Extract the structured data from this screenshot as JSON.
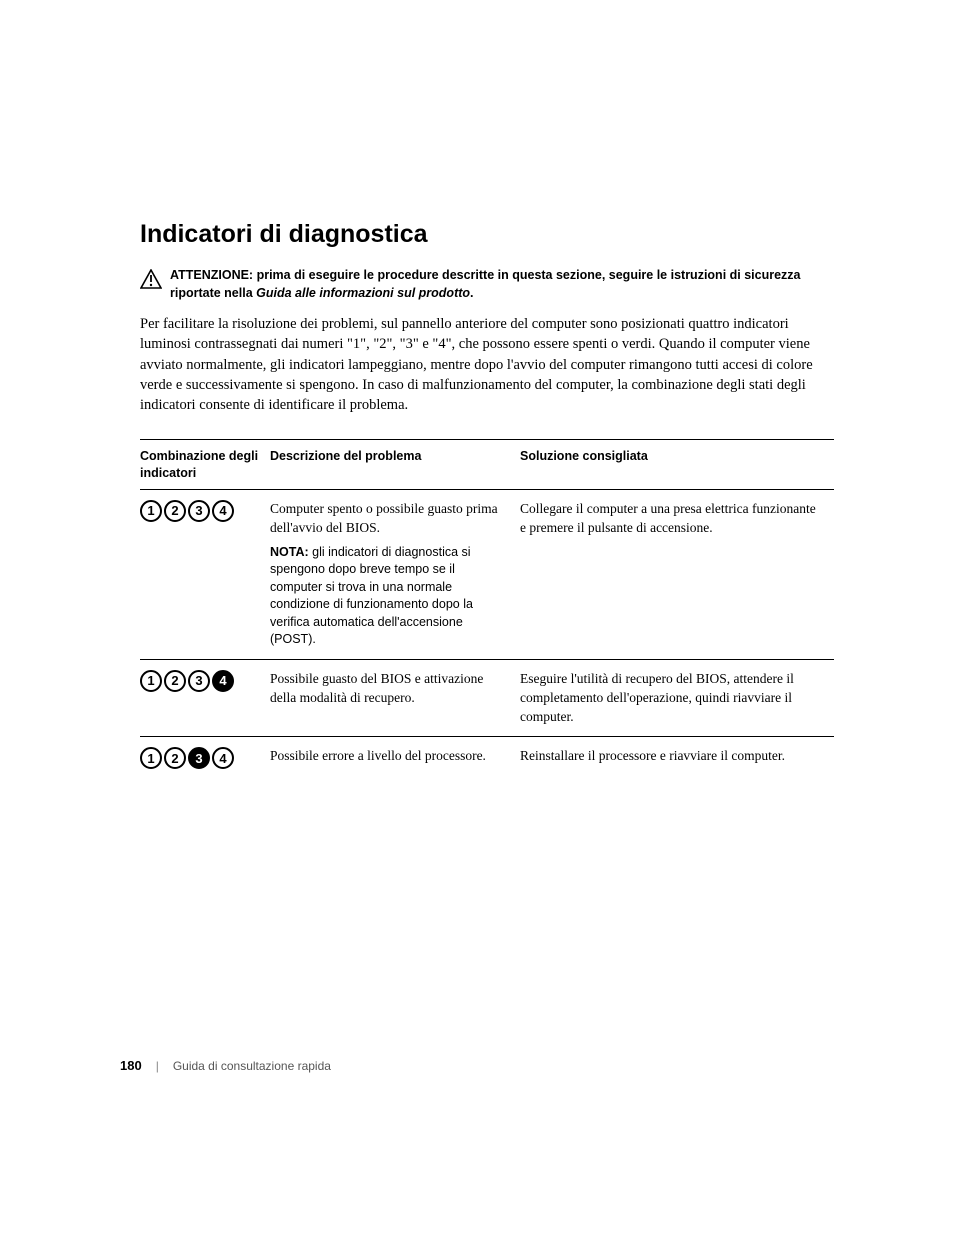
{
  "section_title": "Indicatori di diagnostica",
  "attention": {
    "label": "ATTENZIONE:",
    "text_before": "prima di eseguire le procedure descritte in questa sezione, seguire le istruzioni di sicurezza riportate nella ",
    "ital": "Guida alle informazioni sul prodotto",
    "text_after": "."
  },
  "intro": "Per facilitare la risoluzione dei problemi, sul pannello anteriore del computer sono posizionati quattro indicatori luminosi contrassegnati dai numeri \"1\", \"2\", \"3\" e \"4\", che possono essere spenti o verdi. Quando il computer viene avviato normalmente, gli indicatori lampeggiano, mentre dopo l'avvio del computer rimangono tutti accesi di colore verde e successivamente si spengono. In caso di malfunzionamento del computer, la combinazione degli stati degli indicatori consente di identificare il problema.",
  "table": {
    "headers": {
      "col1": "Combinazione degli indicatori",
      "col2": "Descrizione del problema",
      "col3": "Soluzione consigliata"
    },
    "rows": [
      {
        "leds": [
          "off",
          "off",
          "off",
          "off"
        ],
        "desc": "Computer spento o possibile guasto prima dell'avvio del BIOS.",
        "nota_label": "NOTA:",
        "nota": "gli indicatori di diagnostica si spengono dopo breve tempo se il computer si trova in una normale condizione di funzionamento dopo la verifica automatica dell'accensione (POST).",
        "sol": "Collegare il computer a una presa elettrica funzionante e premere il pulsante di accensione."
      },
      {
        "leds": [
          "off",
          "off",
          "off",
          "on"
        ],
        "desc": "Possibile guasto del BIOS e attivazione della modalità di recupero.",
        "nota_label": "",
        "nota": "",
        "sol": "Eseguire l'utilità di recupero del BIOS, attendere il completamento dell'operazione, quindi riavviare il computer."
      },
      {
        "leds": [
          "off",
          "off",
          "on",
          "off"
        ],
        "desc": "Possibile errore a livello del processore.",
        "nota_label": "",
        "nota": "",
        "sol": "Reinstallare il processore e riavviare il computer."
      }
    ]
  },
  "led_digits": [
    "1",
    "2",
    "3",
    "4"
  ],
  "footer": {
    "page": "180",
    "sep": "|",
    "book": "Guida di consultazione rapida"
  },
  "colors": {
    "text": "#000000",
    "bg": "#ffffff",
    "led_on_bg": "#000000",
    "led_on_fg": "#ffffff",
    "led_off_bg": "#ffffff",
    "led_off_fg": "#000000"
  }
}
